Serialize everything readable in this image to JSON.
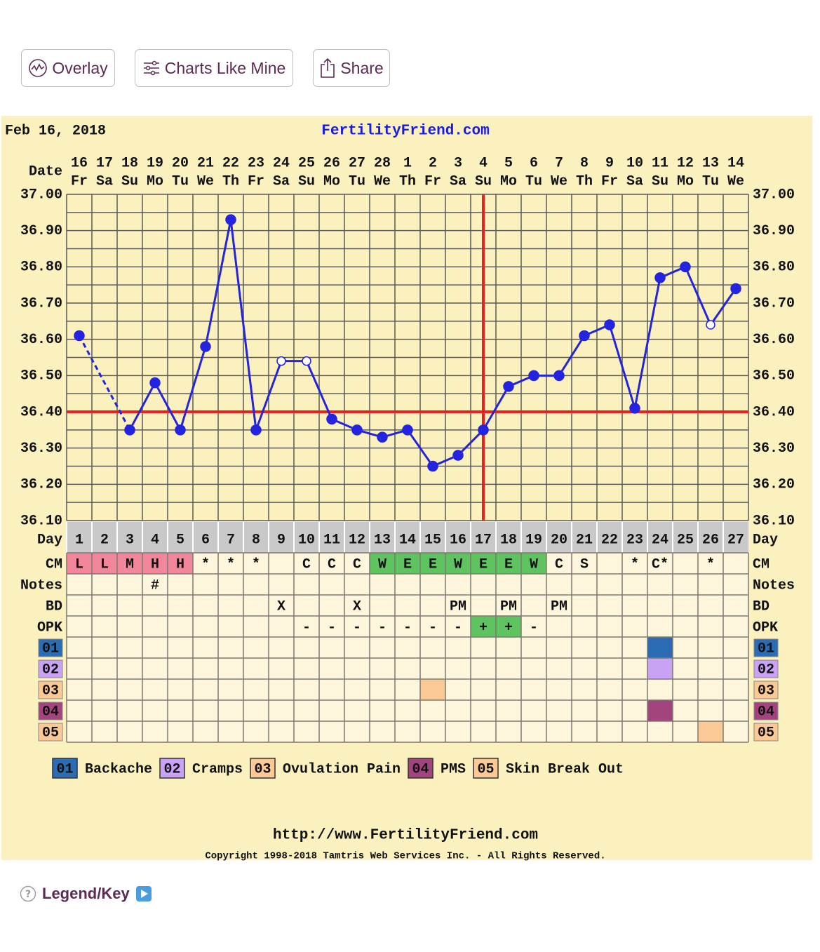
{
  "toolbar": {
    "buttons": [
      "Overlay",
      "Charts Like Mine",
      "Share"
    ]
  },
  "chart_data": {
    "type": "line",
    "date": "Feb 16, 2018",
    "site": "FertilityFriend.com",
    "date_label": "Date",
    "day_label": "Day",
    "dates": [
      16,
      17,
      18,
      19,
      20,
      21,
      22,
      23,
      24,
      25,
      26,
      27,
      28,
      1,
      2,
      3,
      4,
      5,
      6,
      7,
      8,
      9,
      10,
      11,
      12,
      13,
      14
    ],
    "weekdays": [
      "Fr",
      "Sa",
      "Su",
      "Mo",
      "Tu",
      "We",
      "Th",
      "Fr",
      "Sa",
      "Su",
      "Mo",
      "Tu",
      "We",
      "Th",
      "Fr",
      "Sa",
      "Su",
      "Mo",
      "Tu",
      "We",
      "Th",
      "Fr",
      "Sa",
      "Su",
      "Mo",
      "Tu",
      "We"
    ],
    "categories": [
      1,
      2,
      3,
      4,
      5,
      6,
      7,
      8,
      9,
      10,
      11,
      12,
      13,
      14,
      15,
      16,
      17,
      18,
      19,
      20,
      21,
      22,
      23,
      24,
      25,
      26,
      27
    ],
    "values": [
      36.61,
      null,
      36.35,
      36.48,
      36.35,
      36.58,
      36.93,
      36.35,
      36.54,
      36.54,
      36.38,
      36.35,
      36.33,
      36.35,
      36.25,
      36.28,
      36.35,
      36.47,
      36.5,
      36.5,
      36.61,
      36.64,
      36.41,
      36.77,
      36.8,
      36.64,
      36.74
    ],
    "color": "#2323e0",
    "hollow_days": [
      9,
      10,
      26
    ],
    "ylim": [
      36.1,
      37.0
    ],
    "yticks": [
      {
        "value": 36.1,
        "label": "36.10"
      },
      {
        "value": 36.2,
        "label": "36.20"
      },
      {
        "value": 36.3,
        "label": "36.30"
      },
      {
        "value": 36.4,
        "label": "36.40"
      },
      {
        "value": 36.5,
        "label": "36.50"
      },
      {
        "value": 36.6,
        "label": "36.60"
      },
      {
        "value": 36.7,
        "label": "36.70"
      },
      {
        "value": 36.8,
        "label": "36.80"
      },
      {
        "value": 36.9,
        "label": "36.90"
      },
      {
        "value": 37.0,
        "label": "37.00"
      }
    ],
    "grid": true,
    "coverline": 36.4,
    "ovulation_day": 17,
    "marker_line_color": "#e8231f",
    "rows": [
      {
        "label": "CM",
        "values": [
          "L",
          "L",
          "M",
          "H",
          "H",
          "*",
          "*",
          "*",
          null,
          "C",
          "C",
          "C",
          "W",
          "E",
          "E",
          "W",
          "E",
          "E",
          "W",
          "C",
          "S",
          null,
          "*",
          "C*",
          null,
          "*",
          null
        ]
      },
      {
        "label": "Notes",
        "values": [
          null,
          null,
          null,
          "#",
          null,
          null,
          null,
          null,
          null,
          null,
          null,
          null,
          null,
          null,
          null,
          null,
          null,
          null,
          null,
          null,
          null,
          null,
          null,
          null,
          null,
          null,
          null
        ]
      },
      {
        "label": "BD",
        "values": [
          null,
          null,
          null,
          null,
          null,
          null,
          null,
          null,
          "X",
          null,
          null,
          "X",
          null,
          null,
          null,
          "PM",
          null,
          "PM",
          null,
          "PM",
          null,
          null,
          null,
          null,
          null,
          null,
          null
        ]
      },
      {
        "label": "OPK",
        "values": [
          null,
          null,
          null,
          null,
          null,
          null,
          null,
          null,
          null,
          "-",
          "-",
          "-",
          "-",
          "-",
          "-",
          "-",
          "+",
          "+",
          "-",
          null,
          null,
          null,
          null,
          null,
          null,
          null,
          null
        ]
      }
    ],
    "cell_colors": {
      "L": "#f2869a",
      "M": "#f2869a",
      "H": "#f2869a",
      "W": "#5fc35f",
      "E": "#5fc35f",
      "+": "#5fc35f"
    },
    "symptoms": [
      {
        "code": "01",
        "name": "Backache",
        "color": "#2b6cb4",
        "days": [
          24
        ]
      },
      {
        "code": "02",
        "name": "Cramps",
        "color": "#c9a2f5",
        "days": [
          24
        ]
      },
      {
        "code": "03",
        "name": "Ovulation Pain",
        "color": "#fbc995",
        "days": [
          15
        ]
      },
      {
        "code": "04",
        "name": "PMS",
        "color": "#a4447e",
        "days": [
          24
        ]
      },
      {
        "code": "05",
        "name": "Skin Break Out",
        "color": "#fbc995",
        "days": [
          26
        ]
      }
    ],
    "footer_url": "http://www.FertilityFriend.com",
    "copyright": "Copyright 1998-2018 Tamtris Web Services Inc. - All Rights Reserved."
  },
  "legend_key": "Legend/Key"
}
